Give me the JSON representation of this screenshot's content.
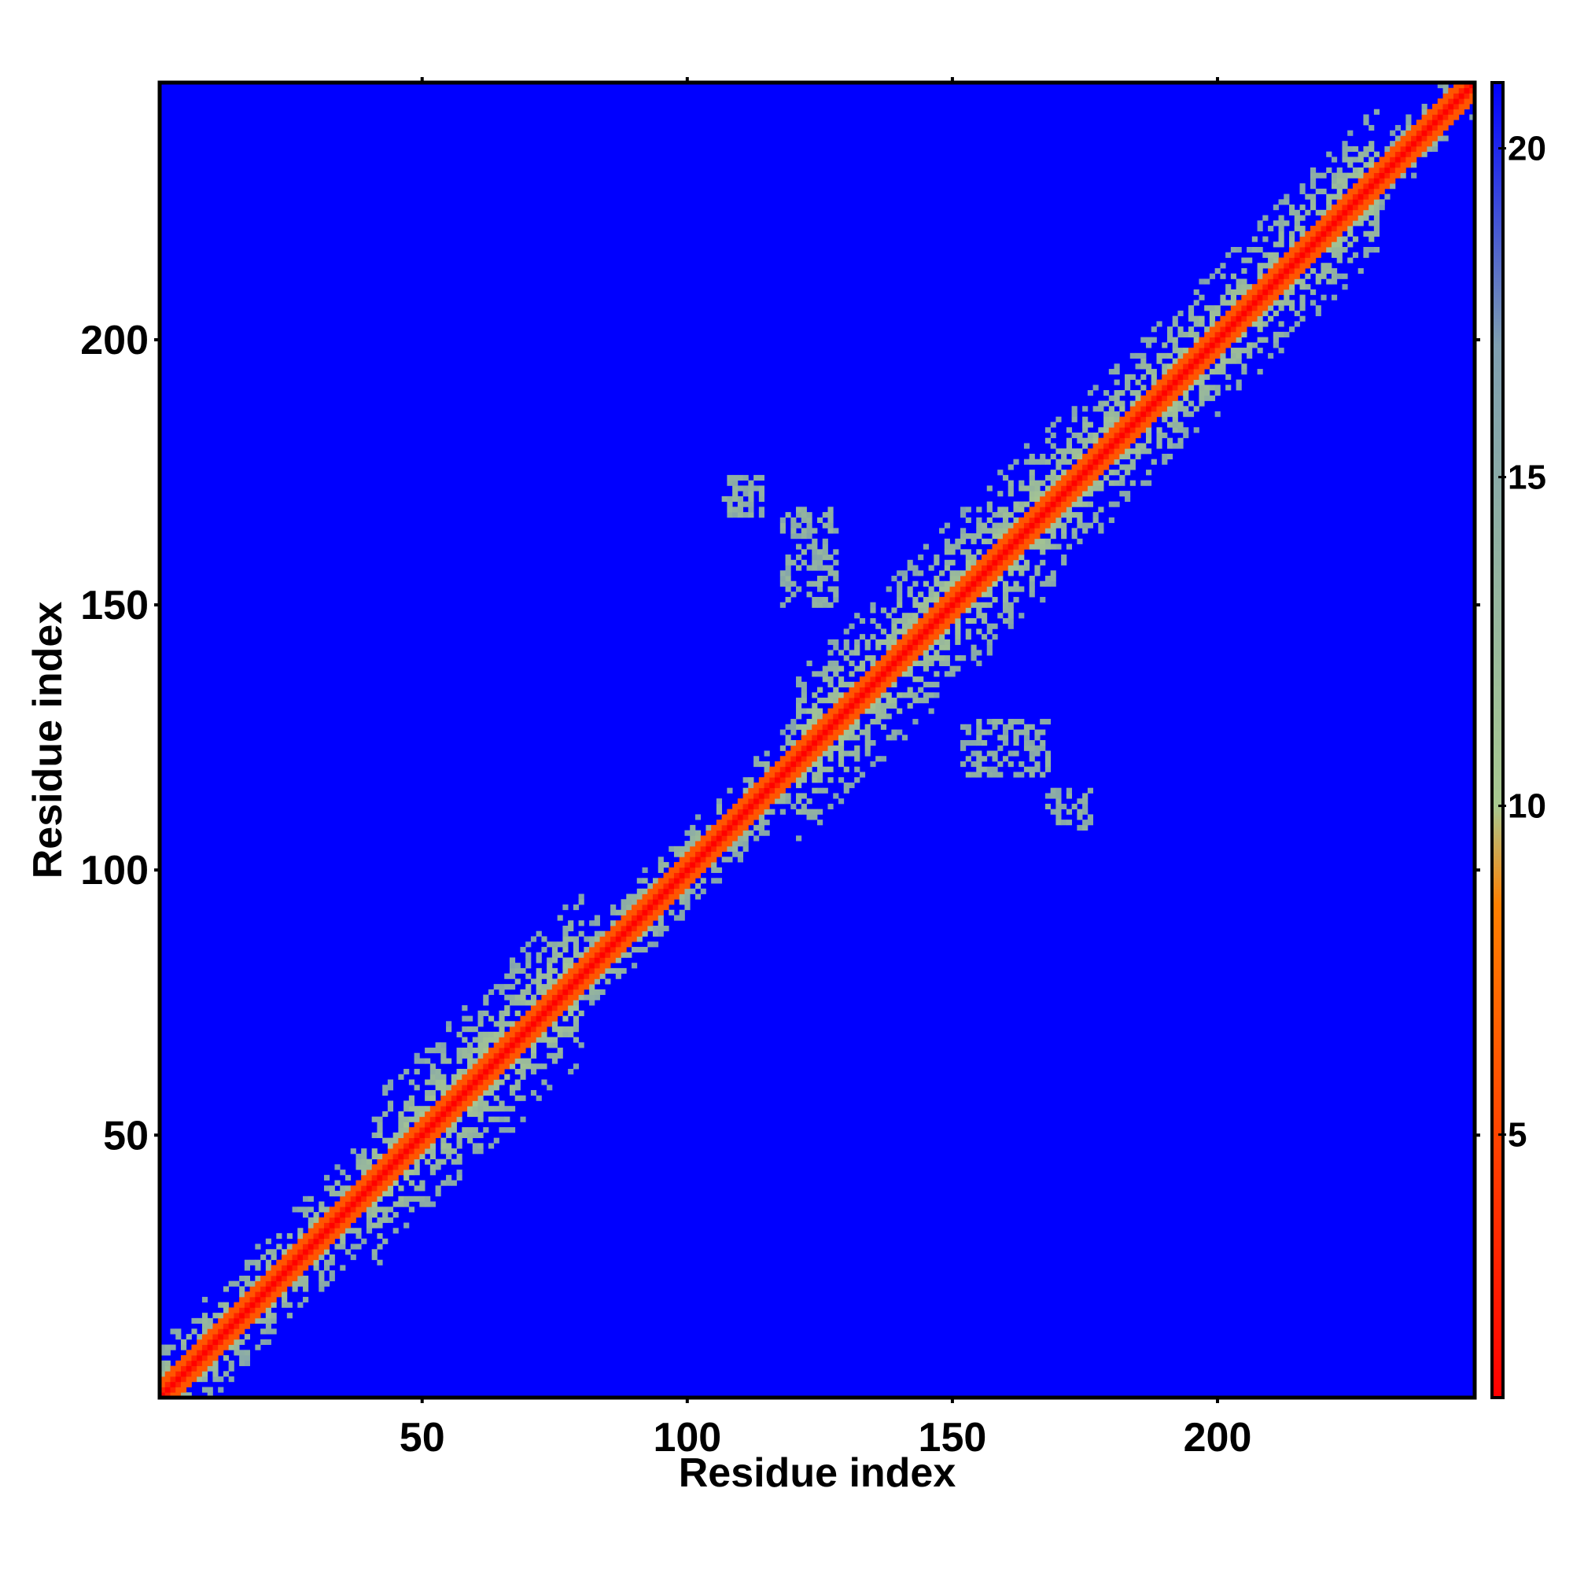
{
  "chart_data": {
    "type": "heatmap",
    "title": "",
    "xlabel": "Residue index",
    "ylabel": "Residue index",
    "xlim": [
      1,
      248
    ],
    "ylim": [
      1,
      248
    ],
    "x_ticks": [
      50,
      100,
      150,
      200
    ],
    "y_ticks": [
      50,
      100,
      150,
      200
    ],
    "colorbar": {
      "range": [
        1,
        21
      ],
      "ticks": [
        5,
        10,
        15,
        20
      ],
      "colors": [
        "#ff0000",
        "#ff8000",
        "#a8c890",
        "#7f9fb0",
        "#0000ff"
      ],
      "stops": [
        1,
        8.5,
        10,
        17,
        21
      ]
    },
    "background_color": "#0000ff",
    "description_values": {
      "diagonal_value": 1,
      "near_diagonal_value": 6,
      "band_value": 12,
      "far_value": 21
    },
    "off_diagonal_clusters": [
      {
        "x": [
          107,
          114
        ],
        "y": [
          167,
          174
        ],
        "value": 13
      },
      {
        "x": [
          118,
          128
        ],
        "y": [
          150,
          168
        ],
        "value": 13
      },
      {
        "x": [
          152,
          168
        ],
        "y": [
          118,
          128
        ],
        "value": 13
      },
      {
        "x": [
          168,
          176
        ],
        "y": [
          108,
          115
        ],
        "value": 13
      }
    ],
    "band_widths": [
      {
        "range": [
          1,
          40
        ],
        "width": 10
      },
      {
        "range": [
          40,
          80
        ],
        "width": 16
      },
      {
        "range": [
          80,
          120
        ],
        "width": 8
      },
      {
        "range": [
          120,
          170
        ],
        "width": 16
      },
      {
        "range": [
          170,
          230
        ],
        "width": 14
      },
      {
        "range": [
          230,
          248
        ],
        "width": 6
      }
    ]
  }
}
